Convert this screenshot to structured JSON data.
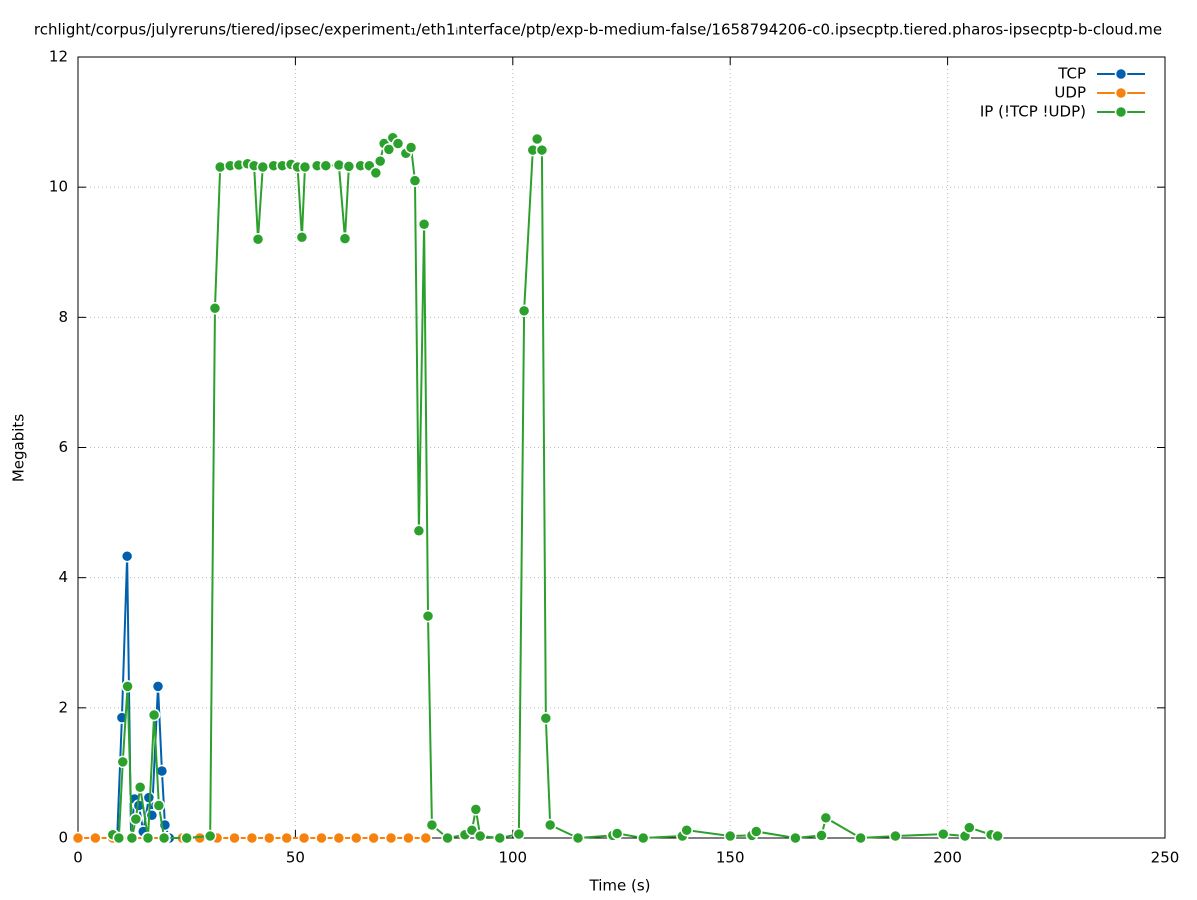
{
  "chart_data": {
    "type": "line",
    "title": "rchlight/corpus/julyreruns/tiered/ipsec/experiment₁/eth1ᵢnterface/ptp/exp-b-medium-false/1658794206-c0.ipsecptp.tiered.pharos-ipsecptp-b-cloud.me",
    "x_label": "Time (s)",
    "y_label": "Megabits",
    "xlim": [
      0,
      250
    ],
    "xticks": [
      0,
      50,
      100,
      150,
      200,
      250
    ],
    "ylim": [
      0,
      12
    ],
    "yticks": [
      0,
      2,
      4,
      6,
      8,
      10,
      12
    ],
    "grid": true,
    "legend": "top-right",
    "series": [
      {
        "name": "TCP",
        "color": "#0060ad",
        "x": [
          9,
          10.1,
          11.3,
          12.2,
          13,
          14,
          15,
          16.3,
          17,
          18.4,
          19.3,
          20,
          21
        ],
        "values": [
          0,
          1.85,
          4.33,
          0.02,
          0.6,
          0.5,
          0.1,
          0.62,
          0.35,
          2.33,
          1.03,
          0.2,
          0
        ]
      },
      {
        "name": "UDP",
        "color": "#f5820d",
        "x": [
          0,
          4,
          8,
          12,
          16,
          20,
          24,
          28,
          32,
          36,
          40,
          44,
          48,
          52,
          56,
          60,
          64,
          68,
          72,
          76,
          80
        ],
        "values": [
          0,
          0,
          0,
          0,
          0,
          0,
          0,
          0,
          0,
          0,
          0,
          0,
          0,
          0,
          0,
          0,
          0,
          0,
          0,
          0,
          0
        ]
      },
      {
        "name": "IP (!TCP  !UDP)",
        "color": "#2ca02c",
        "x": [
          8,
          9.4,
          10.3,
          11.4,
          12.4,
          13.3,
          14.3,
          16.1,
          17.5,
          18.6,
          19.8,
          25,
          30.4,
          31.5,
          32.7,
          35,
          37,
          39,
          40.5,
          41.4,
          42.5,
          45,
          47,
          49,
          50.5,
          51.5,
          52.2,
          55,
          57,
          60,
          61.4,
          62.3,
          65,
          67,
          68.5,
          69.5,
          70.4,
          71.5,
          72.4,
          73.6,
          75.4,
          76.6,
          77.5,
          78.4,
          79.6,
          80.5,
          81.4,
          85,
          89,
          90.6,
          91.5,
          92.5,
          97,
          101.4,
          102.6,
          104.6,
          105.6,
          106.7,
          107.6,
          108.6,
          115,
          123,
          124,
          130,
          139,
          140,
          150,
          155,
          156,
          165,
          171,
          172,
          180,
          188,
          199,
          204,
          205,
          210,
          211.5
        ],
        "values": [
          0.05,
          0,
          1.17,
          2.33,
          0,
          0.29,
          0.78,
          0,
          1.89,
          0.5,
          0,
          0,
          0.03,
          8.14,
          10.31,
          10.33,
          10.34,
          10.36,
          10.33,
          9.2,
          10.31,
          10.33,
          10.33,
          10.35,
          10.31,
          9.23,
          10.31,
          10.33,
          10.33,
          10.34,
          9.21,
          10.32,
          10.33,
          10.33,
          10.22,
          10.4,
          10.67,
          10.58,
          10.76,
          10.67,
          10.52,
          10.61,
          10.1,
          4.72,
          9.43,
          3.41,
          0.2,
          0,
          0.05,
          0.12,
          0.44,
          0.03,
          0,
          0.06,
          8.1,
          10.57,
          10.74,
          10.57,
          1.84,
          0.2,
          0,
          0.04,
          0.07,
          0,
          0.03,
          0.12,
          0.03,
          0.04,
          0.1,
          0,
          0.04,
          0.31,
          0,
          0.03,
          0.06,
          0.03,
          0.16,
          0.05,
          0.03
        ]
      }
    ]
  }
}
